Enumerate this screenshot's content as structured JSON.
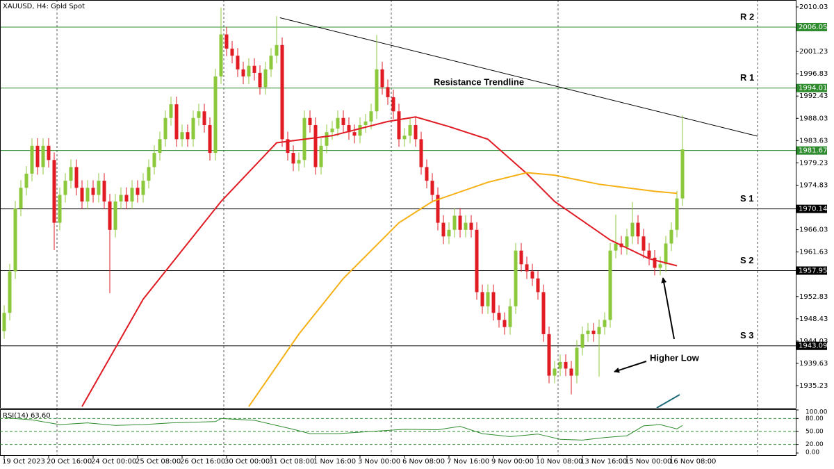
{
  "chart_data": {
    "type": "candlestick",
    "title": "XAUUSD, H4: Gold Spot",
    "x_labels": [
      "19 Oct 2023",
      "20 Oct 16:00",
      "24 Oct 00:00",
      "25 Oct 08:00",
      "26 Oct 16:00",
      "30 Oct 00:00",
      "31 Oct 08:00",
      "1 Nov 16:00",
      "3 Nov 00:00",
      "6 Nov 08:00",
      "7 Nov 16:00",
      "9 Nov 00:00",
      "10 Nov 08:00",
      "13 Nov 16:00",
      "15 Nov 00:00",
      "16 Nov 08:00"
    ],
    "up_color": "#8cc83c",
    "down_color": "#e01b24",
    "open": [
      1946.0,
      1949.6,
      1957.8,
      1970.2,
      1974.3,
      1977.1,
      1982.6,
      1978.4,
      1982.6,
      1979.8,
      1967.4,
      1972.9,
      1975.7,
      1978.4,
      1974.3,
      1971.6,
      1974.3,
      1972.9,
      1975.7,
      1971.6,
      1966.0,
      1971.6,
      1972.9,
      1971.6,
      1974.3,
      1972.9,
      1975.7,
      1978.4,
      1981.2,
      1983.9,
      1988.1,
      1990.8,
      1983.9,
      1985.3,
      1983.9,
      1988.1,
      1989.4,
      1986.7,
      1981.2,
      1996.3,
      2004.6,
      2001.8,
      2000.4,
      1997.7,
      1996.3,
      1998.4,
      1997.0,
      1994.2,
      1997.7,
      2000.4,
      2002.5,
      1983.9,
      1981.2,
      1979.1,
      1979.8,
      1988.1,
      1986.7,
      1978.4,
      1982.6,
      1985.3,
      1986.0,
      1988.1,
      1986.7,
      1985.3,
      1984.6,
      1986.7,
      1987.4,
      1989.4,
      1997.7,
      1994.2,
      1992.2,
      1989.4,
      1983.9,
      1984.6,
      1986.7,
      1983.9,
      1978.4,
      1975.7,
      1972.9,
      1967.4,
      1964.7,
      1966.0,
      1968.8,
      1966.0,
      1967.4,
      1966.0,
      1953.7,
      1950.9,
      1953.7,
      1949.6,
      1948.2,
      1946.8,
      1950.9,
      1961.9,
      1959.2,
      1957.8,
      1956.4,
      1953.7,
      1945.4,
      1937.2,
      1938.6,
      1939.9,
      1938.6,
      1937.2,
      1942.7,
      1945.4,
      1946.1,
      1945.4,
      1946.8,
      1948.2,
      1961.9,
      1963.3,
      1962.6,
      1964.7,
      1967.4,
      1964.7,
      1961.9,
      1960.5,
      1958.5,
      1959.2,
      1963.3,
      1966.0,
      1972.2
    ],
    "high": [
      1951.1,
      1959.3,
      1971.7,
      1975.8,
      1978.6,
      1984.1,
      1984.1,
      1984.1,
      1984.1,
      1981.3,
      1974.4,
      1977.2,
      1979.9,
      1979.9,
      1975.8,
      1975.8,
      1975.8,
      1977.2,
      1977.2,
      1973.1,
      1973.1,
      1974.4,
      1974.4,
      1975.8,
      1975.8,
      1977.2,
      1979.9,
      1982.7,
      1985.4,
      1989.6,
      1992.3,
      1992.3,
      1986.8,
      1986.8,
      1989.6,
      1990.9,
      1990.9,
      1988.2,
      1997.8,
      2009.9,
      2006.1,
      2003.3,
      2001.9,
      1999.2,
      1999.9,
      1999.9,
      1998.5,
      1999.2,
      2001.9,
      2008.2,
      2004.0,
      1985.4,
      1982.7,
      1981.3,
      1989.6,
      1989.6,
      1988.2,
      1984.1,
      1986.8,
      1987.5,
      1989.6,
      1989.6,
      1988.2,
      1986.8,
      1988.2,
      1988.9,
      1990.9,
      2004.5,
      1999.2,
      1995.7,
      1993.7,
      1990.9,
      1986.1,
      1988.2,
      1988.2,
      1985.4,
      1979.9,
      1977.2,
      1974.4,
      1968.9,
      1967.5,
      1970.3,
      1970.3,
      1968.9,
      1968.9,
      1967.5,
      1955.2,
      1955.2,
      1955.2,
      1951.1,
      1949.7,
      1952.4,
      1963.4,
      1963.4,
      1960.7,
      1959.3,
      1957.9,
      1955.2,
      1946.9,
      1940.1,
      1941.4,
      1941.4,
      1940.1,
      1944.2,
      1946.9,
      1947.6,
      1947.6,
      1948.3,
      1949.7,
      1963.4,
      1969.0,
      1964.8,
      1966.2,
      1971.5,
      1968.9,
      1966.2,
      1963.4,
      1962.0,
      1960.7,
      1964.8,
      1967.5,
      1973.7,
      1988.6
    ],
    "low": [
      1944.5,
      1948.1,
      1956.3,
      1968.7,
      1972.8,
      1975.6,
      1976.9,
      1976.9,
      1978.3,
      1962.0,
      1965.9,
      1971.4,
      1974.2,
      1972.8,
      1970.1,
      1970.1,
      1971.4,
      1971.4,
      1970.1,
      1953.5,
      1964.5,
      1970.1,
      1970.1,
      1970.1,
      1971.4,
      1971.4,
      1974.2,
      1976.9,
      1979.7,
      1982.4,
      1986.6,
      1982.4,
      1982.4,
      1982.4,
      1982.4,
      1986.6,
      1985.2,
      1979.7,
      1979.7,
      1994.8,
      2000.3,
      1998.9,
      1996.2,
      1994.8,
      1994.8,
      1995.5,
      1992.7,
      1992.7,
      1996.2,
      1998.9,
      1982.4,
      1979.7,
      1977.6,
      1977.6,
      1978.3,
      1985.2,
      1976.9,
      1976.9,
      1981.1,
      1983.8,
      1984.5,
      1985.2,
      1983.8,
      1983.1,
      1983.1,
      1985.2,
      1985.9,
      1987.9,
      1992.7,
      1990.7,
      1987.9,
      1982.4,
      1982.4,
      1983.1,
      1982.4,
      1976.9,
      1974.2,
      1971.4,
      1965.9,
      1963.2,
      1963.2,
      1964.5,
      1964.5,
      1964.5,
      1964.5,
      1952.2,
      1949.4,
      1949.4,
      1948.1,
      1946.7,
      1945.3,
      1945.3,
      1949.4,
      1957.7,
      1956.3,
      1954.9,
      1952.2,
      1943.9,
      1935.7,
      1935.7,
      1937.1,
      1937.1,
      1933.5,
      1935.7,
      1941.2,
      1943.9,
      1943.9,
      1937.0,
      1945.3,
      1946.7,
      1960.4,
      1961.1,
      1961.1,
      1963.2,
      1963.2,
      1960.4,
      1959.0,
      1957.0,
      1957.0,
      1957.7,
      1961.8,
      1964.5,
      1970.7
    ],
    "close": [
      1949.6,
      1957.8,
      1970.2,
      1974.3,
      1977.1,
      1982.6,
      1978.4,
      1982.6,
      1979.8,
      1967.4,
      1972.9,
      1975.7,
      1978.4,
      1974.3,
      1971.6,
      1974.3,
      1972.9,
      1975.7,
      1971.6,
      1966.0,
      1971.6,
      1972.9,
      1971.6,
      1974.3,
      1972.9,
      1975.7,
      1978.4,
      1981.2,
      1983.9,
      1988.1,
      1990.8,
      1983.9,
      1985.3,
      1983.9,
      1988.1,
      1989.4,
      1986.7,
      1981.2,
      1996.3,
      2004.6,
      2001.8,
      2000.4,
      1997.7,
      1996.3,
      1998.4,
      1997.0,
      1994.2,
      1997.7,
      2000.4,
      2002.5,
      1983.9,
      1981.2,
      1979.1,
      1979.8,
      1988.1,
      1986.7,
      1978.4,
      1982.6,
      1985.3,
      1986.0,
      1988.1,
      1986.7,
      1985.3,
      1984.6,
      1986.7,
      1987.4,
      1989.4,
      1997.7,
      1994.2,
      1992.2,
      1989.4,
      1983.9,
      1984.6,
      1986.7,
      1983.9,
      1978.4,
      1975.7,
      1972.9,
      1967.4,
      1964.7,
      1966.0,
      1968.8,
      1966.0,
      1967.4,
      1966.0,
      1953.7,
      1950.9,
      1953.7,
      1949.6,
      1948.2,
      1946.8,
      1950.9,
      1961.9,
      1959.2,
      1957.8,
      1956.4,
      1953.7,
      1945.4,
      1937.2,
      1938.6,
      1939.9,
      1938.6,
      1937.2,
      1942.7,
      1945.4,
      1946.1,
      1945.4,
      1946.8,
      1948.2,
      1961.9,
      1963.3,
      1962.6,
      1964.7,
      1967.4,
      1964.7,
      1961.9,
      1960.5,
      1958.5,
      1959.2,
      1963.3,
      1966.0,
      1972.2,
      1981.9
    ],
    "ylim": [
      1930.84,
      2011.4
    ],
    "yticks": [
      2010.03,
      2001.23,
      1996.83,
      1992.43,
      1988.03,
      1983.63,
      1979.23,
      1974.83,
      1966.03,
      1961.63,
      1952.83,
      1948.43,
      1944.03,
      1939.63,
      1935.23
    ],
    "levels": [
      {
        "value": 2006.05,
        "name": "R 2",
        "color": "#2e8b2e"
      },
      {
        "value": 1994.01,
        "name": "R 1",
        "color": "#2e8b2e"
      },
      {
        "value": 1981.67,
        "color": "#2e8b2e"
      },
      {
        "value": 1970.14,
        "name": "S 1",
        "color": "#000000"
      },
      {
        "value": 1957.95,
        "name": "S 2",
        "color": "#000000"
      },
      {
        "value": 1943.09,
        "name": "S 3",
        "color": "#000000"
      }
    ],
    "moving_averages": [
      {
        "color": "#e01b24",
        "x": [
          14,
          25,
          39,
          49,
          59,
          69,
          74,
          80,
          87,
          94,
          99,
          109,
          116,
          121
        ],
        "values": [
          1931.1,
          1952.3,
          1971.6,
          1983.2,
          1984.6,
          1987.4,
          1988.3,
          1986.4,
          1983.9,
          1977.1,
          1971.6,
          1964.0,
          1960.3,
          1958.9
        ]
      },
      {
        "color": "#f5b014",
        "x": [
          44,
          53,
          61,
          71,
          77,
          87,
          94,
          99,
          107,
          117,
          121
        ],
        "values": [
          1931.1,
          1945.4,
          1956.4,
          1967.4,
          1971.6,
          1975.4,
          1977.3,
          1976.8,
          1975.0,
          1973.6,
          1973.2
        ]
      }
    ],
    "trendline": {
      "color": "#000000",
      "x": [
        49.6,
        135.5
      ],
      "values": [
        2007.9,
        1984.5
      ]
    },
    "annotations": [
      "Resistance Trendline",
      "Higher Low"
    ],
    "rsi": {
      "label": "RSI(14) 63.60",
      "color": "#2e8b2e",
      "ylim": [
        0,
        100
      ],
      "yticks": [
        {
          "value": 100,
          "label": "100.00"
        },
        {
          "value": 80,
          "label": "80.00"
        },
        {
          "value": 50,
          "label": "50.00"
        },
        {
          "value": 20,
          "label": "20.00"
        },
        {
          "value": 0,
          "label": "0.00"
        }
      ],
      "levels": [
        80,
        50,
        20
      ],
      "x": [
        0,
        5,
        10,
        15,
        20,
        25,
        30,
        38,
        39,
        45,
        52,
        55,
        60,
        66,
        72,
        78,
        82,
        86,
        91,
        96,
        100,
        104,
        108,
        112,
        115,
        118,
        121,
        122
      ],
      "values": [
        82,
        77,
        66,
        70,
        64,
        66,
        70,
        73,
        80,
        76,
        55,
        45,
        45,
        50,
        55,
        54,
        62,
        45,
        38,
        44,
        32,
        30,
        36,
        40,
        63,
        66,
        56,
        64
      ]
    }
  }
}
